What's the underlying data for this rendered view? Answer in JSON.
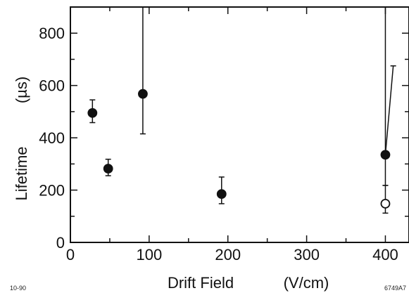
{
  "chart_data": {
    "type": "scatter",
    "title": "",
    "xlabel": "Drift Field",
    "xlabel_unit": "(V/cm)",
    "ylabel": "Lifetime",
    "ylabel_unit": "(µs)",
    "xlim": [
      0,
      430
    ],
    "ylim": [
      0,
      900
    ],
    "xticks": [
      0,
      100,
      200,
      300,
      400
    ],
    "yticks": [
      0,
      200,
      400,
      600,
      800
    ],
    "grid": false,
    "points": [
      {
        "x": 28,
        "y": 495,
        "y_low": 458,
        "y_high": 545,
        "filled": true
      },
      {
        "x": 48,
        "y": 282,
        "y_low": 255,
        "y_high": 318,
        "filled": true
      },
      {
        "x": 92,
        "y": 568,
        "y_low": 415,
        "y_high": 900,
        "filled": true
      },
      {
        "x": 192,
        "y": 185,
        "y_low": 148,
        "y_high": 250,
        "filled": true
      },
      {
        "x": 400,
        "y": 335,
        "y_low": 218,
        "y_high": 900,
        "filled": true
      },
      {
        "x": 400,
        "y": 148,
        "y_low": 112,
        "y_high": 218,
        "filled": false
      }
    ],
    "slanted_error_bar": {
      "x_from": 400,
      "y_from": 335,
      "x_to": 410,
      "y_to": 675
    }
  },
  "corner_labels": {
    "bottom_left": "10-90",
    "bottom_right": "6749A7"
  }
}
